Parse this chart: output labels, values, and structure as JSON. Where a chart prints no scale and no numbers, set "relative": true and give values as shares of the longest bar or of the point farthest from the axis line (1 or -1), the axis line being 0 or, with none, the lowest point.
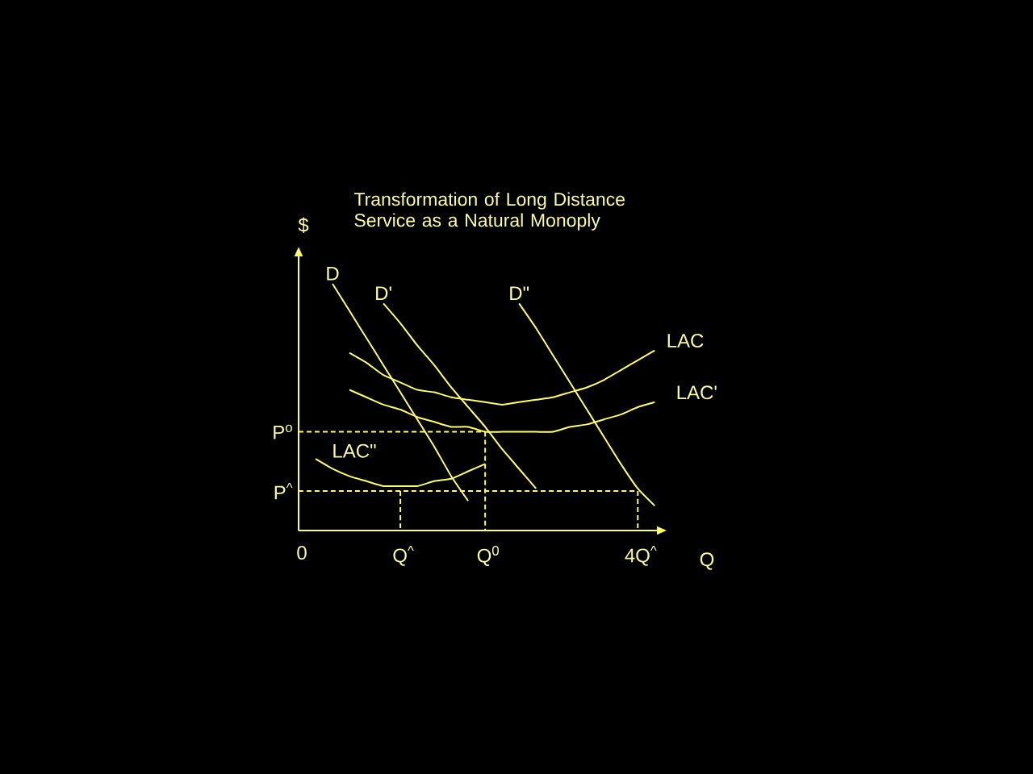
{
  "chart_data": {
    "type": "line",
    "title": "Transformation of Long Distance Service as a Natural Monoply",
    "xlabel": "Q",
    "ylabel": "$",
    "relative": true,
    "categories": [
      "0",
      null,
      null,
      null,
      null,
      null,
      "Q$^{^}$",
      null,
      null,
      null,
      null,
      "Q$^{0}$",
      null,
      null,
      null,
      null,
      null,
      null,
      null,
      null,
      "4Q$^{^}$",
      null
    ],
    "series": [
      {
        "name": "D",
        "color": "#ffff66",
        "values": [
          null,
          null,
          1.0,
          0.89,
          0.78,
          0.67,
          0.56,
          0.45,
          0.34,
          0.22,
          0.12,
          null,
          null,
          null,
          null,
          null,
          null,
          null,
          null,
          null,
          null,
          null
        ]
      },
      {
        "name": "D'",
        "color": "#ffff66",
        "values": [
          null,
          null,
          null,
          null,
          null,
          0.92,
          0.84,
          0.75,
          0.67,
          0.58,
          0.5,
          0.42,
          0.33,
          0.25,
          0.17,
          null,
          null,
          null,
          null,
          null,
          null,
          null
        ]
      },
      {
        "name": "D\"",
        "color": "#ffff66",
        "values": [
          null,
          null,
          null,
          null,
          null,
          null,
          null,
          null,
          null,
          null,
          null,
          null,
          null,
          0.92,
          0.82,
          0.71,
          0.6,
          0.49,
          0.38,
          0.27,
          0.17,
          0.1
        ]
      },
      {
        "name": "LAC",
        "color": "#ffff66",
        "values": [
          null,
          null,
          null,
          0.72,
          0.68,
          0.63,
          0.6,
          0.57,
          0.56,
          0.54,
          0.53,
          0.52,
          0.51,
          0.52,
          0.53,
          0.54,
          0.56,
          0.58,
          0.61,
          0.65,
          0.69,
          0.73
        ]
      },
      {
        "name": "LAC'",
        "color": "#ffff66",
        "values": [
          null,
          null,
          null,
          0.57,
          0.54,
          0.51,
          0.49,
          0.46,
          0.44,
          0.42,
          0.42,
          0.4,
          0.4,
          0.4,
          0.4,
          0.4,
          0.42,
          0.43,
          0.45,
          0.47,
          0.5,
          0.52
        ]
      },
      {
        "name": "LAC\"",
        "color": "#ffff66",
        "values": [
          null,
          0.29,
          0.25,
          0.22,
          0.2,
          0.18,
          0.18,
          0.18,
          0.2,
          0.21,
          0.24,
          0.27,
          null,
          null,
          null,
          null,
          null,
          null,
          null,
          null,
          null,
          null
        ]
      },
      {
        "name": "P$^{o}$",
        "color": "#ffff66",
        "line_style": "dashed",
        "x": [
          "0",
          "Q$^{0}$"
        ],
        "values": [
          0.4,
          0.4
        ]
      },
      {
        "color": "#ffff66",
        "line_style": "dashed",
        "x": [
          "Q$^{0}$",
          "Q$^{0}$"
        ],
        "values": [
          0.4,
          0
        ]
      },
      {
        "name": "P$^{^}$",
        "color": "#ffff66",
        "line_style": "dashed",
        "x": [
          "0",
          "4Q$^{^}$"
        ],
        "values": [
          0.16,
          0.16
        ]
      },
      {
        "color": "#ffff66",
        "line_style": "dashed",
        "x": [
          "4Q$^{^}$",
          "4Q$^{^}$"
        ],
        "values": [
          0.16,
          0
        ]
      },
      {
        "color": "#ffff66",
        "line_style": "dashed",
        "x": [
          "Q$^{^}$",
          "Q$^{^}$"
        ],
        "values": [
          0.16,
          0
        ]
      }
    ]
  }
}
